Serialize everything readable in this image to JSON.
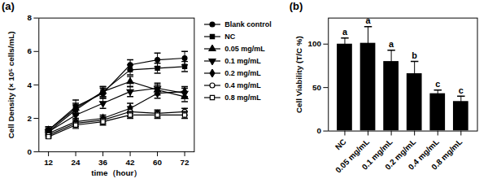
{
  "chart_data": [
    {
      "type": "line",
      "title": "(a)",
      "x_label": "time（hour）",
      "y_label": "Cell Density (× 10⁵ cells/mL)",
      "categories": [
        "12",
        "24",
        "36",
        "42",
        "60",
        "72"
      ],
      "ylim": [
        0,
        8
      ],
      "yticks": [
        0,
        2,
        4,
        6,
        8
      ],
      "legend": "right",
      "series": [
        {
          "name": "Blank control",
          "color": "#000000",
          "marker": "circle",
          "values": [
            1.3,
            2.7,
            3.5,
            5.2,
            5.5,
            5.6
          ],
          "errors": [
            0.2,
            0.4,
            0.3,
            0.3,
            0.4,
            0.4
          ]
        },
        {
          "name": "NC",
          "color": "#000000",
          "marker": "square",
          "values": [
            1.2,
            2.5,
            3.6,
            4.9,
            5.0,
            5.1
          ],
          "errors": [
            0.2,
            0.3,
            0.3,
            0.3,
            0.3,
            0.3
          ]
        },
        {
          "name": "0.05 mg/mL",
          "color": "#000000",
          "marker": "triangle",
          "values": [
            1.3,
            2.6,
            3.6,
            4.2,
            3.7,
            3.3
          ],
          "errors": [
            0.2,
            0.3,
            0.3,
            0.3,
            0.3,
            0.3
          ]
        },
        {
          "name": "0.1 mg/mL",
          "color": "#000000",
          "marker": "triangle-down",
          "values": [
            1.2,
            2.2,
            2.9,
            3.6,
            3.8,
            3.5
          ],
          "errors": [
            0.2,
            0.3,
            0.3,
            0.3,
            0.3,
            0.3
          ]
        },
        {
          "name": "0.2 mg/mL",
          "color": "#000000",
          "marker": "diamond",
          "values": [
            1.1,
            1.8,
            2.0,
            2.6,
            3.5,
            3.6
          ],
          "errors": [
            0.2,
            0.2,
            0.2,
            0.3,
            0.3,
            0.3
          ]
        },
        {
          "name": "0.4 mg/mL",
          "color": "#000000",
          "marker": "circle-open",
          "values": [
            1.0,
            1.7,
            1.9,
            2.4,
            2.3,
            2.4
          ],
          "errors": [
            0.1,
            0.2,
            0.2,
            0.3,
            0.2,
            0.2
          ]
        },
        {
          "name": "0.8 mg/mL",
          "color": "#000000",
          "marker": "square-open",
          "values": [
            0.9,
            1.6,
            1.8,
            2.2,
            2.2,
            2.2
          ],
          "errors": [
            0.1,
            0.2,
            0.2,
            0.2,
            0.2,
            0.2
          ]
        }
      ]
    },
    {
      "type": "bar",
      "title": "(b)",
      "y_label": "Cell Viability (T/C %)",
      "categories": [
        "NC",
        "0.05 mg/mL",
        "0.1 mg/mL",
        "0.2 mg/mL",
        "0.4 mg/mL",
        "0.8 mg/mL"
      ],
      "values": [
        100,
        101,
        80,
        66,
        43,
        34
      ],
      "errors": [
        7,
        19,
        13,
        14,
        4,
        6
      ],
      "annotations": [
        "a",
        "a",
        "a",
        "b",
        "c",
        "c"
      ],
      "color": "#000000",
      "ylim": [
        0,
        130
      ],
      "yticks": [
        0,
        50,
        100
      ]
    }
  ]
}
